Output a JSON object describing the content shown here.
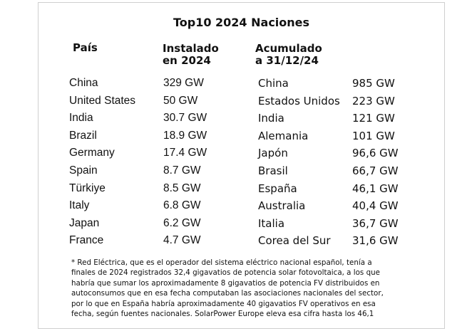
{
  "title": "Top10 2024 Naciones",
  "headers": {
    "country": "País",
    "installed_line1": "Instalado",
    "installed_line2": "en 2024",
    "cumulative_line1": "Acumulado",
    "cumulative_line2": "a 31/12/24"
  },
  "rows": [
    {
      "country": "China",
      "installed": "329 GW",
      "cum_country": "China",
      "cum_value": "985 GW"
    },
    {
      "country": "United States",
      "installed": "50 GW",
      "cum_country": "Estados Unidos",
      "cum_value": "223 GW"
    },
    {
      "country": "India",
      "installed": "30.7 GW",
      "cum_country": "India",
      "cum_value": "121 GW"
    },
    {
      "country": "Brazil",
      "installed": "18.9 GW",
      "cum_country": "Alemania",
      "cum_value": "101 GW"
    },
    {
      "country": "Germany",
      "installed": "17.4 GW",
      "cum_country": "Japón",
      "cum_value": "96,6 GW"
    },
    {
      "country": "Spain",
      "installed": "8.7 GW",
      "cum_country": "Brasil",
      "cum_value": "66,7 GW"
    },
    {
      "country": "Türkiye",
      "installed": "8.5 GW",
      "cum_country": "España",
      "cum_value": "46,1 GW"
    },
    {
      "country": "Italy",
      "installed": "6.8 GW",
      "cum_country": "Australia",
      "cum_value": "40,4 GW"
    },
    {
      "country": "Japan",
      "installed": "6.2 GW",
      "cum_country": "Italia",
      "cum_value": "36,7 GW"
    },
    {
      "country": "France",
      "installed": "4.7 GW",
      "cum_country": "Corea del Sur",
      "cum_value": "31,6 GW"
    }
  ],
  "note": [
    "* Red Eléctrica, que es el operador del sistema eléctrico nacional español, tenía a",
    "finales de 2024 registrados 32,4 gigavatios de potencia solar fotovoltaica, a los que",
    "habría que sumar los aproximadamente 8 gigavatios de potencia FV distribuidos en",
    "autoconsumos que en esa fecha computaban las asociaciones nacionales del sector,",
    "por lo que en España habría aproximadamente 40 gigavatios FV operativos en esa",
    "fecha, según fuentes nacionales. SolarPower Europe eleva esa cifra hasta los 46,1"
  ]
}
